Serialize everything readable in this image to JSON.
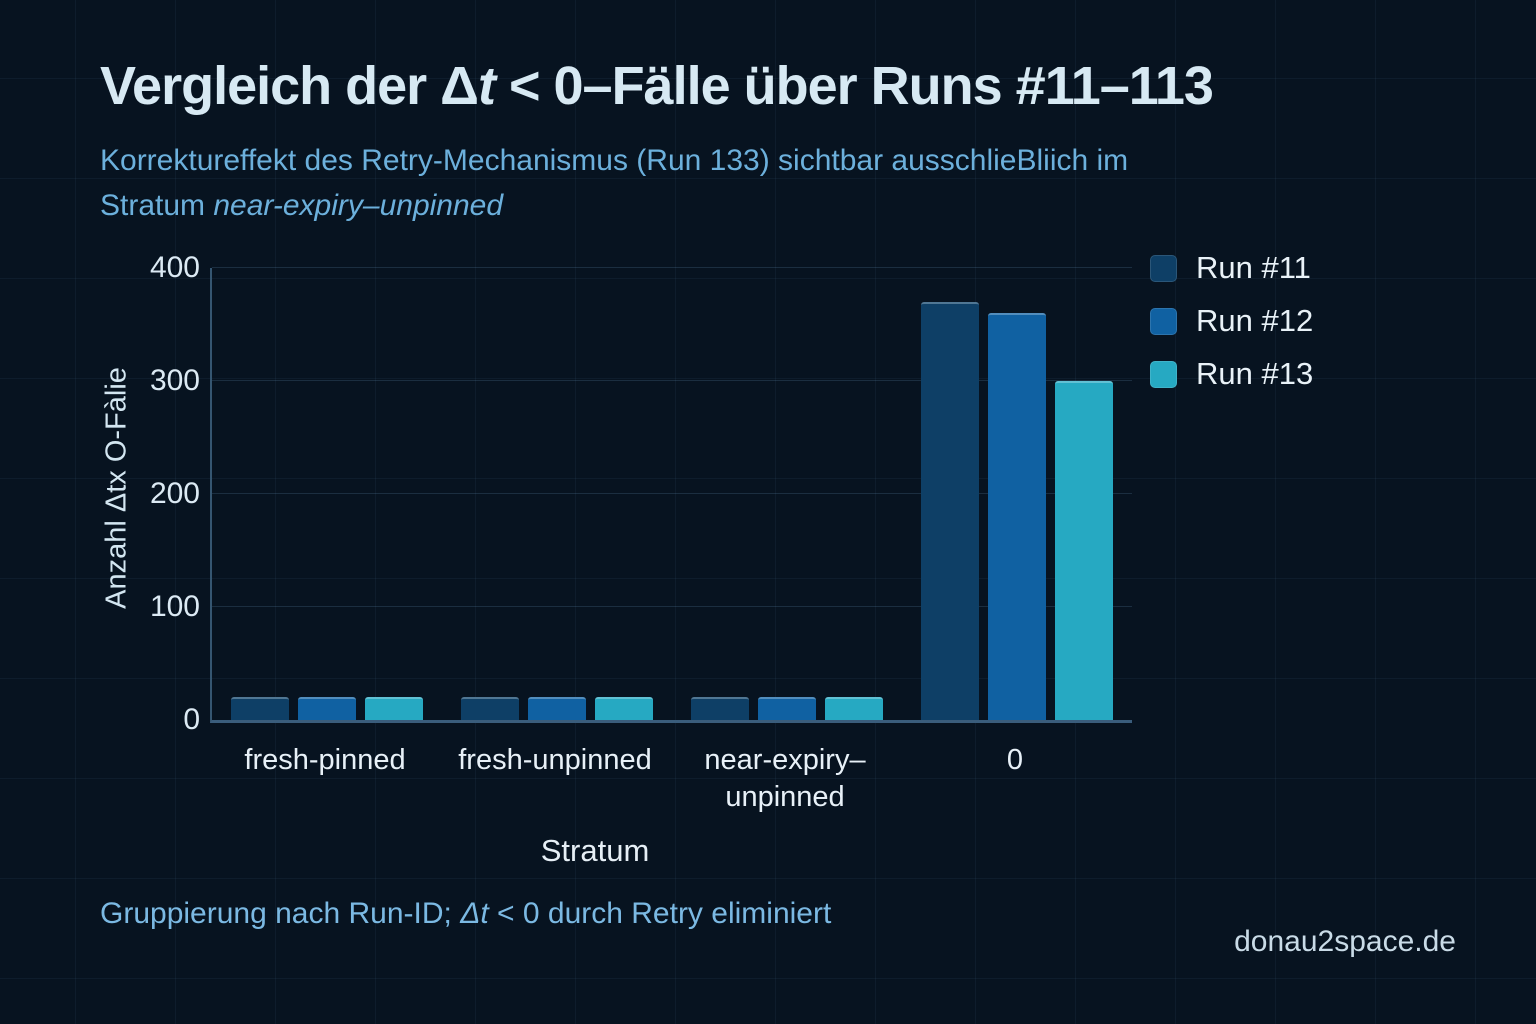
{
  "page": {
    "title_pre": "Vergleich der Δ",
    "title_italic": "t",
    "title_post": " < 0–Fälle über Runs #11–113",
    "subtitle_line1": "Korrektureffekt des Retry-Mechanismus (Run 133) sichtbar ausschlieBliich im",
    "subtitle_line2_pre": "Stratum ",
    "subtitle_line2_italic": "near-expiry–unpinned",
    "footer_pre": "Gruppierung nach Run-ID; ",
    "footer_italic": "Δt",
    "footer_post": " < 0 durch Retry eliminiert",
    "watermark": "donau2space.de"
  },
  "chart_data": {
    "type": "bar",
    "title": "Vergleich der Δt < 0–Fälle über Runs #11–113",
    "subtitle": "Korrektureffekt des Retry-Mechanismus (Run 133) sichtbar ausschlieBliich im Stratum near-expiry–unpinned",
    "categories": [
      "fresh-pinned",
      "fresh-unpinned",
      "near-expiry–unpinned",
      "0"
    ],
    "series": [
      {
        "name": "Run #11",
        "color": "#0e3f66",
        "values": [
          20,
          20,
          20,
          370
        ]
      },
      {
        "name": "Run #12",
        "color": "#1061a2",
        "values": [
          20,
          20,
          20,
          360
        ]
      },
      {
        "name": "Run #13",
        "color": "#26a9c2",
        "values": [
          20,
          20,
          20,
          300
        ]
      }
    ],
    "xlabel": "Stratum",
    "ylabel": "Anzahl Δtx O-Fàlie",
    "ylim": [
      0,
      400
    ],
    "yticks": [
      0,
      100,
      200,
      300,
      400
    ],
    "grid": true,
    "legend_position": "top-right",
    "footnote": "Gruppierung nach Run-ID; Δt < 0 durch Retry eliminiert",
    "source": "donau2space.de",
    "background_color": "#071320"
  }
}
